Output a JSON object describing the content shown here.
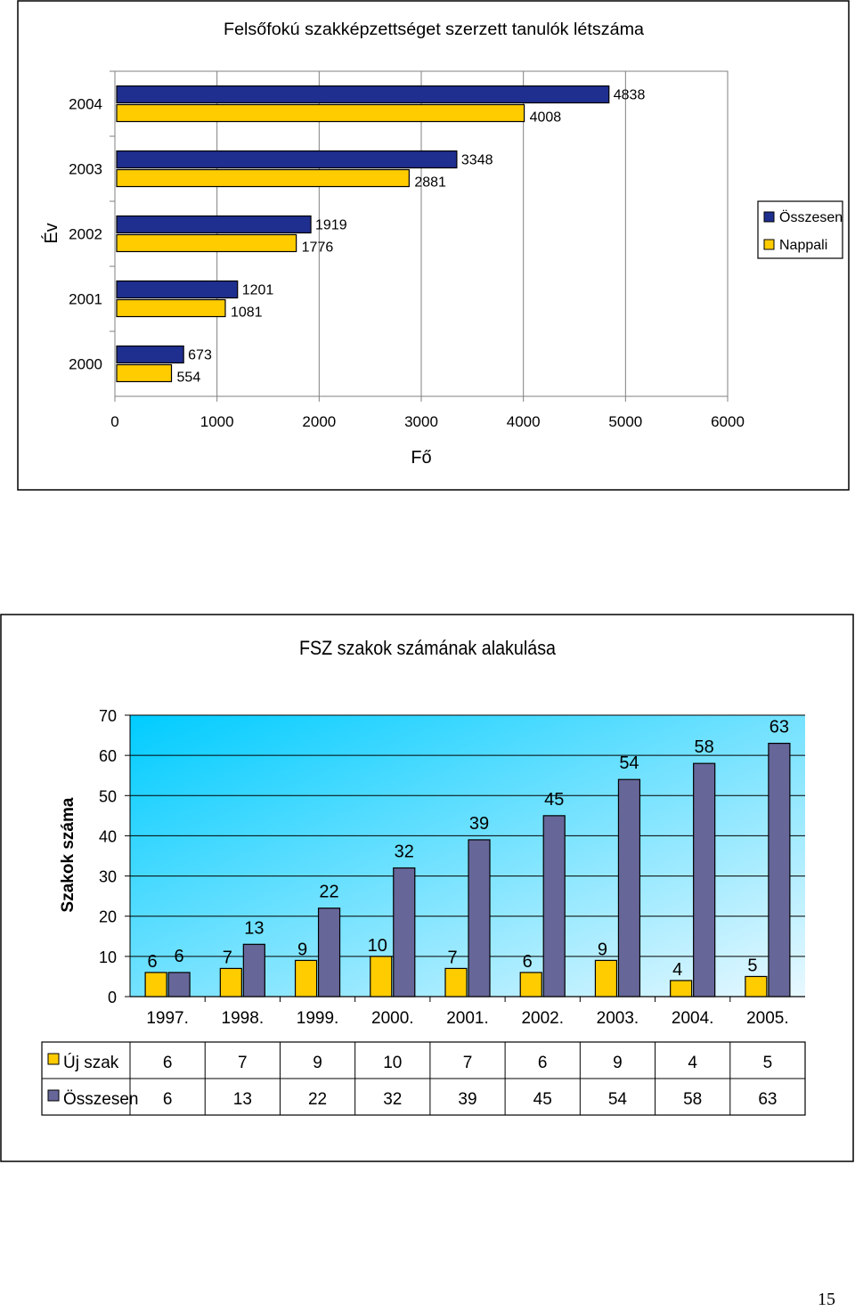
{
  "chart_data": [
    {
      "type": "bar",
      "orientation": "horizontal",
      "title": "Felsőfokú szakképzettséget szerzett tanulók létszáma",
      "xlabel": "Fő",
      "ylabel": "Év",
      "categories": [
        "2000",
        "2001",
        "2002",
        "2003",
        "2004"
      ],
      "series": [
        {
          "name": "Összesen",
          "color": "#1F2F8F",
          "values": [
            673,
            1201,
            1919,
            3348,
            4838
          ]
        },
        {
          "name": "Nappali",
          "color": "#FFCC00",
          "values": [
            554,
            1081,
            1776,
            2881,
            4008
          ]
        }
      ],
      "xlim": [
        0,
        6000
      ],
      "xticks": [
        "0",
        "1000",
        "2000",
        "3000",
        "4000",
        "5000",
        "6000"
      ],
      "legend": "right",
      "grid": true
    },
    {
      "type": "bar",
      "title": "FSZ szakok számának alakulása",
      "xlabel": "",
      "ylabel": "Szakok száma",
      "categories": [
        "1997.",
        "1998.",
        "1999.",
        "2000.",
        "2001.",
        "2002.",
        "2003.",
        "2004.",
        "2005."
      ],
      "series": [
        {
          "name": "Új szak",
          "color": "#FFCC00",
          "values": [
            6,
            7,
            9,
            10,
            7,
            6,
            9,
            4,
            5
          ]
        },
        {
          "name": "Összesen",
          "color": "#666699",
          "values": [
            6,
            13,
            22,
            32,
            39,
            45,
            54,
            58,
            63
          ]
        }
      ],
      "ylim": [
        0,
        70
      ],
      "yticks": [
        "0",
        "10",
        "20",
        "30",
        "40",
        "50",
        "60",
        "70"
      ],
      "legend": "data-table",
      "grid": true
    }
  ],
  "page_number": "15"
}
